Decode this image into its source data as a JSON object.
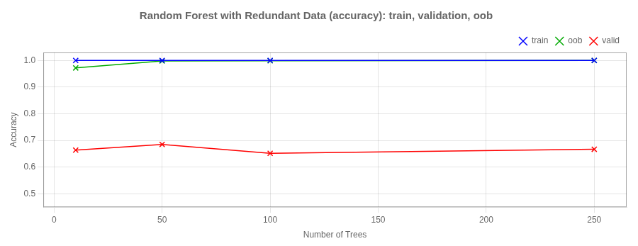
{
  "chart_data": {
    "type": "line",
    "title": "Random Forest with Redundant Data (accuracy): train, validation, oob",
    "xlabel": "Number of Trees",
    "ylabel": "Accuracy",
    "x": [
      10,
      50,
      100,
      250
    ],
    "series": [
      {
        "name": "train",
        "color": "#0000ff",
        "values": [
          1.0,
          1.0,
          1.0,
          1.0
        ]
      },
      {
        "name": "oob",
        "color": "#00aa00",
        "values": [
          0.972,
          0.998,
          0.999,
          1.0
        ]
      },
      {
        "name": "valid",
        "color": "#ff0000",
        "values": [
          0.664,
          0.685,
          0.652,
          0.667
        ]
      }
    ],
    "marker": "x",
    "xlim": [
      -5,
      265
    ],
    "ylim": [
      0.45,
      1.03
    ],
    "xticks": [
      0,
      50,
      100,
      150,
      200,
      250
    ],
    "yticks": [
      0.5,
      0.6,
      0.7,
      0.8,
      0.9,
      {
        "value": 1.0,
        "label": "1.0"
      }
    ],
    "grid": true,
    "legend": "upper right"
  }
}
